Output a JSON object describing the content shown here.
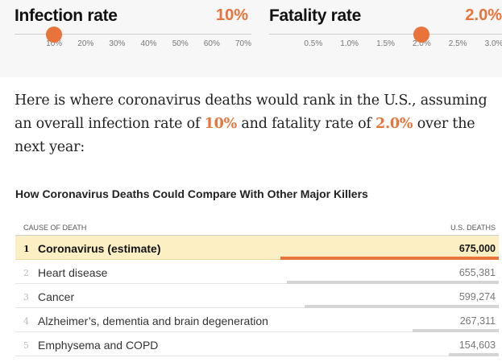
{
  "infection": {
    "title": "Infection rate",
    "value": "10%",
    "selected": 10,
    "min": 0,
    "max": 70,
    "ticks": [
      {
        "label": "10%",
        "value": 10
      },
      {
        "label": "20%",
        "value": 20
      },
      {
        "label": "30%",
        "value": 30
      },
      {
        "label": "40%",
        "value": 40
      },
      {
        "label": "50%",
        "value": 50
      },
      {
        "label": "60%",
        "value": 60
      },
      {
        "label": "70%",
        "value": 70
      }
    ]
  },
  "fatality": {
    "title": "Fatality rate",
    "value": "2.0%",
    "selected": 2.0,
    "min": 0,
    "max": 3.0,
    "ticks": [
      {
        "label": "0.5%",
        "value": 0.5
      },
      {
        "label": "1.0%",
        "value": 1.0
      },
      {
        "label": "1.5%",
        "value": 1.5
      },
      {
        "label": "2.0%",
        "value": 2.0
      },
      {
        "label": "2.5%",
        "value": 2.5
      },
      {
        "label": "3.0%",
        "value": 3.0
      }
    ]
  },
  "intro": {
    "part1": "Here is where coronavirus deaths would rank in the U.S., assuming an overall infection rate of ",
    "infection": "10%",
    "part2": " and fatality rate of ",
    "fatality": "2.0%",
    "part3": " over the next year:"
  },
  "table": {
    "title": "How Coronavirus Deaths Could Compare With Other Major Killers",
    "col_cause": "CAUSE OF DEATH",
    "col_deaths": "U.S. DEATHS",
    "rows": [
      {
        "rank": "1",
        "cause": "Coronavirus (estimate)",
        "deaths": "675,000",
        "value": 675000,
        "highlight": true
      },
      {
        "rank": "2",
        "cause": "Heart disease",
        "deaths": "655,381",
        "value": 655381,
        "highlight": false
      },
      {
        "rank": "3",
        "cause": "Cancer",
        "deaths": "599,274",
        "value": 599274,
        "highlight": false
      },
      {
        "rank": "4",
        "cause": "Alzheimer’s, dementia and brain degeneration",
        "deaths": "267,311",
        "value": 267311,
        "highlight": false
      },
      {
        "rank": "5",
        "cause": "Emphysema and COPD",
        "deaths": "154,603",
        "value": 154603,
        "highlight": false
      }
    ]
  },
  "colors": {
    "accent": "#e8743b",
    "highlight_row": "#fcefc4",
    "bar_gray": "#d4d4d4"
  }
}
